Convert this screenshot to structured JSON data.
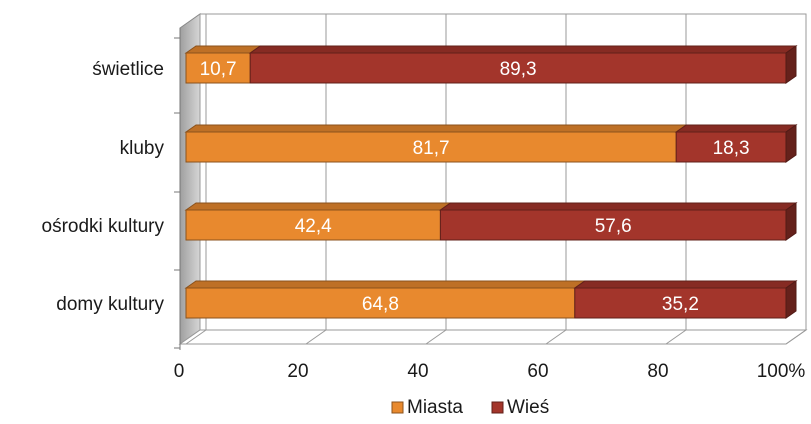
{
  "chart_data": {
    "type": "bar",
    "orientation": "horizontal",
    "stacked": true,
    "percent_stacked": true,
    "three_d": true,
    "categories": [
      "domy kultury",
      "ośrodki kultury",
      "kluby",
      "świetlice"
    ],
    "series": [
      {
        "name": "Miasta",
        "color": "#e8892e",
        "values": [
          64.8,
          42.4,
          81.7,
          10.7
        ],
        "labels": [
          "64,8",
          "42,4",
          "81,7",
          "10,7"
        ]
      },
      {
        "name": "Wieś",
        "color": "#a3352b",
        "values": [
          35.2,
          57.6,
          18.3,
          89.3
        ],
        "labels": [
          "35,2",
          "57,6",
          "18,3",
          "89,3"
        ]
      }
    ],
    "xlim": [
      0,
      100
    ],
    "xticks": [
      "0",
      "20",
      "40",
      "60",
      "80",
      "100%"
    ],
    "grid": true,
    "legend": "bottom",
    "title": "",
    "xlabel": "",
    "ylabel": ""
  }
}
